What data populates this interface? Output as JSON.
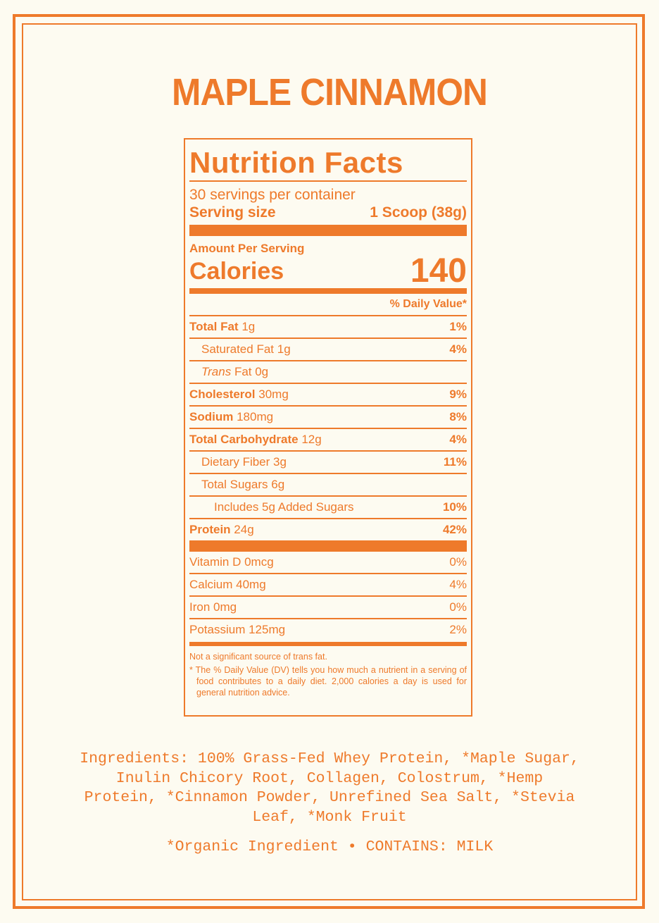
{
  "colors": {
    "accent": "#ee7a2b",
    "background": "#fdfbf1"
  },
  "product_title": "MAPLE CINNAMON",
  "label": {
    "heading": "Nutrition Facts",
    "servings_per_container": "30 servings per container",
    "serving_size_label": "Serving size",
    "serving_size_value": "1 Scoop (38g)",
    "amount_per_serving": "Amount Per Serving",
    "calories_label": "Calories",
    "calories_value": "140",
    "dv_header": "% Daily Value*",
    "nutrients": [
      {
        "name": "Total Fat",
        "amount": "1g",
        "dv": "1%"
      },
      {
        "name": "Saturated Fat",
        "amount": "1g",
        "dv": "4%"
      },
      {
        "name": "Trans",
        "suffix": "Fat 0g",
        "dv": ""
      },
      {
        "name": "Cholesterol",
        "amount": "30mg",
        "dv": "9%"
      },
      {
        "name": "Sodium",
        "amount": "180mg",
        "dv": "8%"
      },
      {
        "name": "Total Carbohydrate",
        "amount": "12g",
        "dv": "4%"
      },
      {
        "name": "Dietary Fiber",
        "amount": "3g",
        "dv": "11%"
      },
      {
        "name": "Total Sugars",
        "amount": "6g",
        "dv": ""
      },
      {
        "name": "Includes 5g Added Sugars",
        "amount": "",
        "dv": "10%"
      },
      {
        "name": "Protein",
        "amount": "24g",
        "dv": "42%"
      }
    ],
    "vitamins": [
      {
        "name": "Vitamin D 0mcg",
        "dv": "0%"
      },
      {
        "name": "Calcium 40mg",
        "dv": "4%"
      },
      {
        "name": "Iron 0mg",
        "dv": "0%"
      },
      {
        "name": "Potassium 125mg",
        "dv": "2%"
      }
    ],
    "trans_note": "Not a significant source of trans fat.",
    "footnote": "* The % Daily Value (DV) tells you how much a nutrient in a serving of food contributes to a daily diet. 2,000 calories a day is used for general nutrition advice."
  },
  "ingredients": "Ingredients: 100% Grass-Fed Whey Protein, *Maple Sugar, Inulin Chicory Root, Collagen, Colostrum, *Hemp Protein, *Cinnamon Powder, Unrefined Sea Salt, *Stevia Leaf, *Monk Fruit",
  "contains": "*Organic Ingredient • CONTAINS: MILK"
}
